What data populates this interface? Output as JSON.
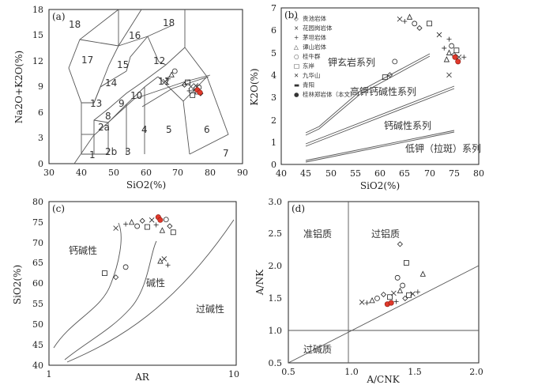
{
  "figure": {
    "panels": [
      "(a)",
      "(b)",
      "(c)",
      "(d)"
    ]
  },
  "chart_data": [
    {
      "panel": "(a)",
      "type": "scatter",
      "xlabel": "SiO2(%)",
      "ylabel": "Na2O+K2O(%)",
      "xlim": [
        30,
        90
      ],
      "ylim": [
        0,
        18
      ],
      "xticks": [
        "30",
        "40",
        "50",
        "60",
        "70",
        "80",
        "90"
      ],
      "yticks": [
        "0",
        "3",
        "6",
        "9",
        "12",
        "15",
        "18"
      ],
      "field_labels": [
        "1",
        "2a",
        "2b",
        "3",
        "4",
        "5",
        "6",
        "7",
        "8",
        "9",
        "10",
        "11",
        "12",
        "13",
        "14",
        "15",
        "16",
        "17",
        "18",
        "18"
      ],
      "points": [
        {
          "x": 66,
          "y": 9.6
        },
        {
          "x": 67,
          "y": 9.9
        },
        {
          "x": 68,
          "y": 10.4
        },
        {
          "x": 69,
          "y": 10.8
        },
        {
          "x": 72,
          "y": 9.2
        },
        {
          "x": 73,
          "y": 9.5
        },
        {
          "x": 74,
          "y": 9.0
        },
        {
          "x": 75,
          "y": 8.6
        },
        {
          "x": 76,
          "y": 8.4
        },
        {
          "x": 76.5,
          "y": 8.9
        },
        {
          "x": 77,
          "y": 8.2
        },
        {
          "x": 74.5,
          "y": 8.0
        },
        {
          "x": 75.5,
          "y": 9.1
        },
        {
          "x": 73.5,
          "y": 8.5
        }
      ],
      "highlight": [
        {
          "x": 76,
          "y": 8.6
        },
        {
          "x": 76.8,
          "y": 8.3
        }
      ]
    },
    {
      "panel": "(b)",
      "type": "scatter",
      "xlabel": "SiO2(%)",
      "ylabel": "K2O(%)",
      "xlim": [
        40,
        80
      ],
      "ylim": [
        0,
        7
      ],
      "xticks": [
        "40",
        "45",
        "50",
        "55",
        "60",
        "65",
        "70",
        "75",
        "80"
      ],
      "yticks": [
        "0",
        "1",
        "2",
        "3",
        "4",
        "5",
        "6",
        "7"
      ],
      "series_labels": [
        "钾玄岩系列",
        "高钾钙碱性系列",
        "钙碱性系列",
        "低钾（拉斑）系列"
      ],
      "legend": [
        "贵池岩体",
        "花园岗岩体",
        "茅坦岩体",
        "谭山岩体",
        "桂牛群",
        "东岸",
        "九华山",
        "青阳",
        "桂林郑岩体（本文）"
      ],
      "points": [
        {
          "x": 64,
          "y": 6.5
        },
        {
          "x": 65,
          "y": 6.4
        },
        {
          "x": 66,
          "y": 6.6
        },
        {
          "x": 67,
          "y": 6.3
        },
        {
          "x": 68,
          "y": 6.1
        },
        {
          "x": 70,
          "y": 6.3
        },
        {
          "x": 72,
          "y": 5.8
        },
        {
          "x": 73,
          "y": 5.2
        },
        {
          "x": 74,
          "y": 5.0
        },
        {
          "x": 74.5,
          "y": 5.3
        },
        {
          "x": 75,
          "y": 4.9
        },
        {
          "x": 75.5,
          "y": 5.1
        },
        {
          "x": 76,
          "y": 4.8
        },
        {
          "x": 74,
          "y": 5.6
        },
        {
          "x": 73.5,
          "y": 4.7
        },
        {
          "x": 63,
          "y": 4.6
        },
        {
          "x": 62,
          "y": 4.0
        },
        {
          "x": 61,
          "y": 3.9
        },
        {
          "x": 74,
          "y": 4.0
        },
        {
          "x": 77,
          "y": 4.8
        }
      ],
      "highlight": [
        {
          "x": 75.2,
          "y": 4.8
        },
        {
          "x": 75.8,
          "y": 4.6
        }
      ]
    },
    {
      "panel": "(c)",
      "type": "scatter",
      "xlabel": "AR",
      "ylabel": "SiO2(%)",
      "xscale": "log",
      "xlim": [
        1,
        10
      ],
      "ylim": [
        40,
        80
      ],
      "xticks": [
        "1",
        "10"
      ],
      "yticks": [
        "40",
        "45",
        "50",
        "55",
        "60",
        "65",
        "70",
        "75",
        "80"
      ],
      "field_labels": [
        "钙碱性",
        "碱性",
        "过碱性"
      ],
      "points": [
        {
          "x": 2.3,
          "y": 73.5
        },
        {
          "x": 2.6,
          "y": 74.5
        },
        {
          "x": 2.8,
          "y": 75.0
        },
        {
          "x": 3.0,
          "y": 74.0
        },
        {
          "x": 3.2,
          "y": 75.3
        },
        {
          "x": 3.4,
          "y": 73.8
        },
        {
          "x": 3.6,
          "y": 75.5
        },
        {
          "x": 3.8,
          "y": 74.3
        },
        {
          "x": 4.1,
          "y": 73.0
        },
        {
          "x": 4.3,
          "y": 75.6
        },
        {
          "x": 4.5,
          "y": 74.0
        },
        {
          "x": 4.7,
          "y": 72.5
        },
        {
          "x": 4.2,
          "y": 66.0
        },
        {
          "x": 4.4,
          "y": 64.5
        },
        {
          "x": 4.0,
          "y": 65.5
        },
        {
          "x": 2.6,
          "y": 64.0
        },
        {
          "x": 2.3,
          "y": 61.5
        },
        {
          "x": 2.0,
          "y": 62.5
        }
      ],
      "highlight": [
        {
          "x": 3.9,
          "y": 76.2
        },
        {
          "x": 4.0,
          "y": 75.5
        }
      ]
    },
    {
      "panel": "(d)",
      "type": "scatter",
      "xlabel": "A/CNK",
      "ylabel": "A/NK",
      "xlim": [
        0.5,
        2.0
      ],
      "ylim": [
        0.5,
        3.0
      ],
      "xticks": [
        "0.5",
        "1.0",
        "1.5",
        "2.0"
      ],
      "yticks": [
        "0.5",
        "1.0",
        "1.5",
        "2.0",
        "2.5",
        "3.0"
      ],
      "field_labels": [
        "准铝质",
        "过铝质",
        "过碱质"
      ],
      "points": [
        {
          "x": 1.08,
          "y": 1.44
        },
        {
          "x": 1.12,
          "y": 1.43
        },
        {
          "x": 1.16,
          "y": 1.47
        },
        {
          "x": 1.2,
          "y": 1.5
        },
        {
          "x": 1.25,
          "y": 1.56
        },
        {
          "x": 1.3,
          "y": 1.52
        },
        {
          "x": 1.33,
          "y": 1.58
        },
        {
          "x": 1.35,
          "y": 1.45
        },
        {
          "x": 1.38,
          "y": 1.62
        },
        {
          "x": 1.4,
          "y": 1.7
        },
        {
          "x": 1.42,
          "y": 1.5
        },
        {
          "x": 1.45,
          "y": 1.55
        },
        {
          "x": 1.48,
          "y": 1.57
        },
        {
          "x": 1.52,
          "y": 1.6
        },
        {
          "x": 1.56,
          "y": 1.88
        },
        {
          "x": 1.36,
          "y": 1.82
        },
        {
          "x": 1.38,
          "y": 2.34
        },
        {
          "x": 1.43,
          "y": 2.05
        }
      ],
      "highlight": [
        {
          "x": 1.28,
          "y": 1.41
        },
        {
          "x": 1.31,
          "y": 1.43
        }
      ]
    }
  ]
}
